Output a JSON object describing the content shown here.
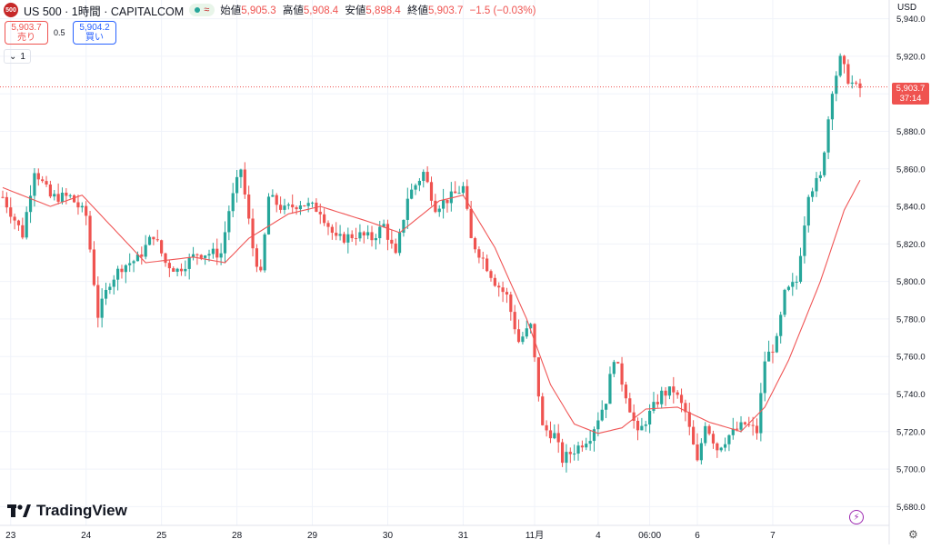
{
  "header": {
    "symbol_icon": "500",
    "title": "US 500 · 1時間 · CAPITALCOM",
    "ohlc": [
      {
        "label": "始値",
        "value": "5,905.3"
      },
      {
        "label": "高値",
        "value": "5,908.4"
      },
      {
        "label": "安値",
        "value": "5,898.4"
      },
      {
        "label": "終値",
        "value": "5,903.7"
      }
    ],
    "change": "−1.5 (−0.03%)",
    "wave_icon": "≈"
  },
  "trade": {
    "sell_price": "5,903.7",
    "sell_label": "売り",
    "spread": "0.5",
    "buy_price": "5,904.2",
    "buy_label": "買い"
  },
  "collapse": {
    "count": "1",
    "icon": "chevron-down-icon"
  },
  "currency": "USD",
  "last_price": {
    "value": "5,903.7",
    "countdown": "37:14"
  },
  "brand": "TradingView",
  "colors": {
    "up": "#26a69a",
    "down": "#ef5350",
    "ma": "#f05656",
    "grid": "#f0f3fa",
    "price_line": "#ef5350"
  },
  "chart_data": {
    "type": "candlestick",
    "timeframe": "1時間",
    "ylim": [
      5670,
      5950
    ],
    "y_ticks": [
      5680,
      5700,
      5720,
      5740,
      5760,
      5780,
      5800,
      5820,
      5840,
      5860,
      5880,
      5900,
      5920,
      5940
    ],
    "y_tick_labels": [
      "5,680.0",
      "5,700.0",
      "5,720.0",
      "5,740.0",
      "5,760.0",
      "5,780.0",
      "5,800.0",
      "5,820.0",
      "5,840.0",
      "5,860.0",
      "5,880.0",
      "5,900.0",
      "5,920.0",
      "5,940.0"
    ],
    "x_ticks": [
      {
        "label": "23",
        "index": 2
      },
      {
        "label": "24",
        "index": 21
      },
      {
        "label": "25",
        "index": 40
      },
      {
        "label": "28",
        "index": 59
      },
      {
        "label": "29",
        "index": 78
      },
      {
        "label": "30",
        "index": 97
      },
      {
        "label": "31",
        "index": 116
      },
      {
        "label": "11月",
        "index": 134
      },
      {
        "label": "4",
        "index": 150
      },
      {
        "label": "06:00",
        "index": 163
      },
      {
        "label": "6",
        "index": 175
      },
      {
        "label": "7",
        "index": 194
      }
    ],
    "ma_anchors": [
      [
        0,
        5850
      ],
      [
        12,
        5840
      ],
      [
        20,
        5846
      ],
      [
        28,
        5828
      ],
      [
        36,
        5810
      ],
      [
        48,
        5813
      ],
      [
        56,
        5810
      ],
      [
        62,
        5823
      ],
      [
        72,
        5836
      ],
      [
        80,
        5840
      ],
      [
        92,
        5832
      ],
      [
        100,
        5826
      ],
      [
        110,
        5843
      ],
      [
        116,
        5846
      ],
      [
        124,
        5818
      ],
      [
        132,
        5780
      ],
      [
        138,
        5745
      ],
      [
        144,
        5724
      ],
      [
        150,
        5719
      ],
      [
        156,
        5722
      ],
      [
        162,
        5732
      ],
      [
        170,
        5733
      ],
      [
        178,
        5725
      ],
      [
        186,
        5720
      ],
      [
        192,
        5733
      ],
      [
        198,
        5758
      ],
      [
        206,
        5800
      ],
      [
        212,
        5838
      ],
      [
        216,
        5854
      ]
    ],
    "close_anchors": [
      [
        0,
        5845
      ],
      [
        5,
        5825
      ],
      [
        8,
        5860
      ],
      [
        12,
        5845
      ],
      [
        17,
        5845
      ],
      [
        21,
        5835
      ],
      [
        24,
        5782
      ],
      [
        27,
        5800
      ],
      [
        30,
        5808
      ],
      [
        34,
        5812
      ],
      [
        38,
        5825
      ],
      [
        41,
        5810
      ],
      [
        44,
        5806
      ],
      [
        49,
        5815
      ],
      [
        55,
        5815
      ],
      [
        57,
        5838
      ],
      [
        60,
        5860
      ],
      [
        63,
        5818
      ],
      [
        65,
        5803
      ],
      [
        67,
        5845
      ],
      [
        71,
        5838
      ],
      [
        75,
        5842
      ],
      [
        80,
        5838
      ],
      [
        84,
        5822
      ],
      [
        89,
        5825
      ],
      [
        93,
        5823
      ],
      [
        96,
        5830
      ],
      [
        99,
        5813
      ],
      [
        102,
        5845
      ],
      [
        106,
        5858
      ],
      [
        109,
        5840
      ],
      [
        113,
        5845
      ],
      [
        116,
        5850
      ],
      [
        118,
        5822
      ],
      [
        121,
        5812
      ],
      [
        124,
        5800
      ],
      [
        127,
        5792
      ],
      [
        130,
        5768
      ],
      [
        133,
        5776
      ],
      [
        136,
        5722
      ],
      [
        139,
        5718
      ],
      [
        141,
        5705
      ],
      [
        145,
        5712
      ],
      [
        148,
        5718
      ],
      [
        152,
        5737
      ],
      [
        154,
        5760
      ],
      [
        157,
        5740
      ],
      [
        160,
        5718
      ],
      [
        162,
        5726
      ],
      [
        166,
        5740
      ],
      [
        169,
        5742
      ],
      [
        172,
        5730
      ],
      [
        175,
        5703
      ],
      [
        177,
        5725
      ],
      [
        180,
        5711
      ],
      [
        183,
        5718
      ],
      [
        187,
        5724
      ],
      [
        190,
        5720
      ],
      [
        192,
        5758
      ],
      [
        195,
        5768
      ],
      [
        197,
        5793
      ],
      [
        200,
        5800
      ],
      [
        203,
        5848
      ],
      [
        206,
        5855
      ],
      [
        209,
        5903
      ],
      [
        211,
        5918
      ],
      [
        213,
        5908
      ],
      [
        215,
        5903
      ]
    ]
  }
}
